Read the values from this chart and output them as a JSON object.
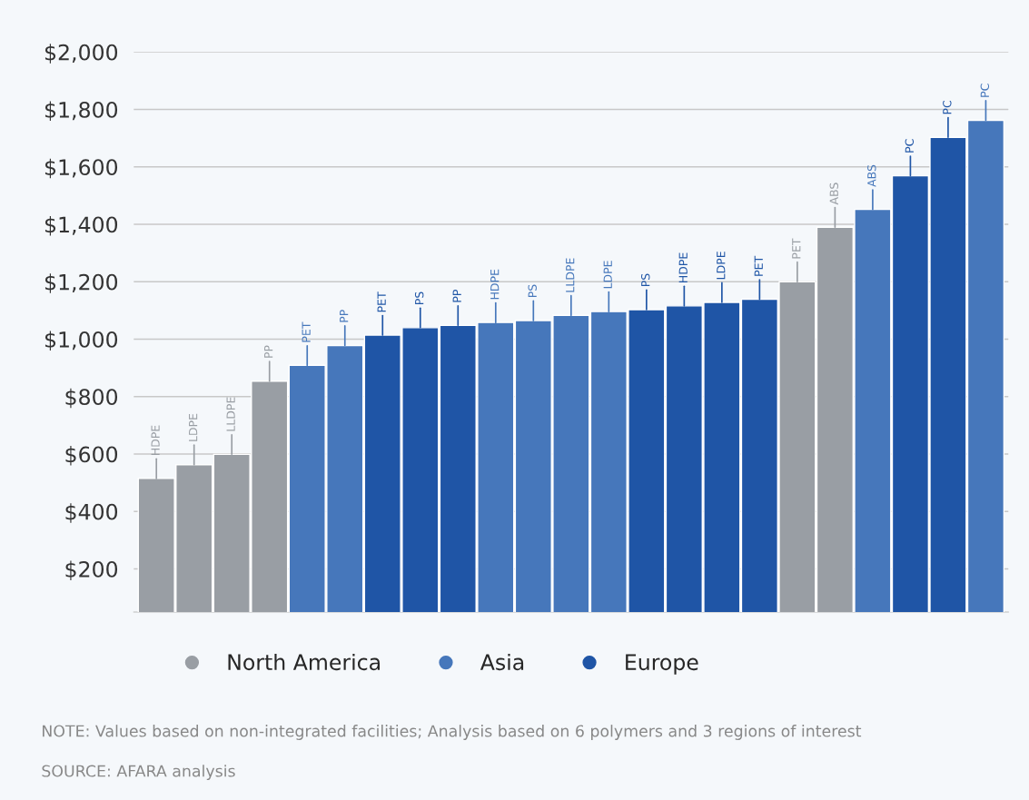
{
  "chart_data": {
    "type": "bar",
    "categories": [
      "HDPE",
      "LDPE",
      "LLDPE",
      "PP",
      "PET",
      "PP",
      "PET",
      "PS",
      "PP",
      "HDPE",
      "PS",
      "LLDPE",
      "LDPE",
      "PS",
      "HDPE",
      "LDPE",
      "PET",
      "PET",
      "ABS",
      "ABS",
      "PC",
      "PC",
      "PC"
    ],
    "series": [
      {
        "name": "North America",
        "color": "#999ea4",
        "values": [
          515,
          563,
          599,
          854,
          null,
          null,
          null,
          null,
          null,
          null,
          null,
          null,
          null,
          null,
          null,
          null,
          null,
          1200,
          1390,
          null,
          null,
          null,
          null
        ]
      },
      {
        "name": "Asia",
        "color": "#4677bb",
        "values": [
          null,
          null,
          null,
          null,
          909,
          978,
          null,
          null,
          null,
          1058,
          1065,
          1083,
          1096,
          null,
          null,
          null,
          null,
          null,
          null,
          1452,
          null,
          null,
          1762
        ]
      },
      {
        "name": "Europe",
        "color": "#1f55a6",
        "values": [
          null,
          null,
          null,
          null,
          null,
          null,
          1014,
          1040,
          1048,
          null,
          null,
          null,
          null,
          1103,
          1116,
          1128,
          1139,
          null,
          null,
          null,
          1569,
          1703,
          null
        ]
      }
    ],
    "ylim": [
      50,
      2000
    ],
    "yticks": [
      {
        "value": 200,
        "label": "$200"
      },
      {
        "value": 400,
        "label": "$400"
      },
      {
        "value": 600,
        "label": "$600"
      },
      {
        "value": 800,
        "label": "$800"
      },
      {
        "value": 1000,
        "label": "$1,000"
      },
      {
        "value": 1200,
        "label": "$1,200"
      },
      {
        "value": 1400,
        "label": "$1,400"
      },
      {
        "value": 1600,
        "label": "$1,600"
      },
      {
        "value": 1800,
        "label": "$1,800"
      },
      {
        "value": 2000,
        "label": "$2,000"
      }
    ],
    "grid": "y",
    "legend": "bottom",
    "tick_labels": "y",
    "annotations": [
      "NOTE: Values based on non-integrated facilities; Analysis based on 6 polymers and 3 regions of interest",
      "SOURCE: AFARA analysis"
    ]
  }
}
